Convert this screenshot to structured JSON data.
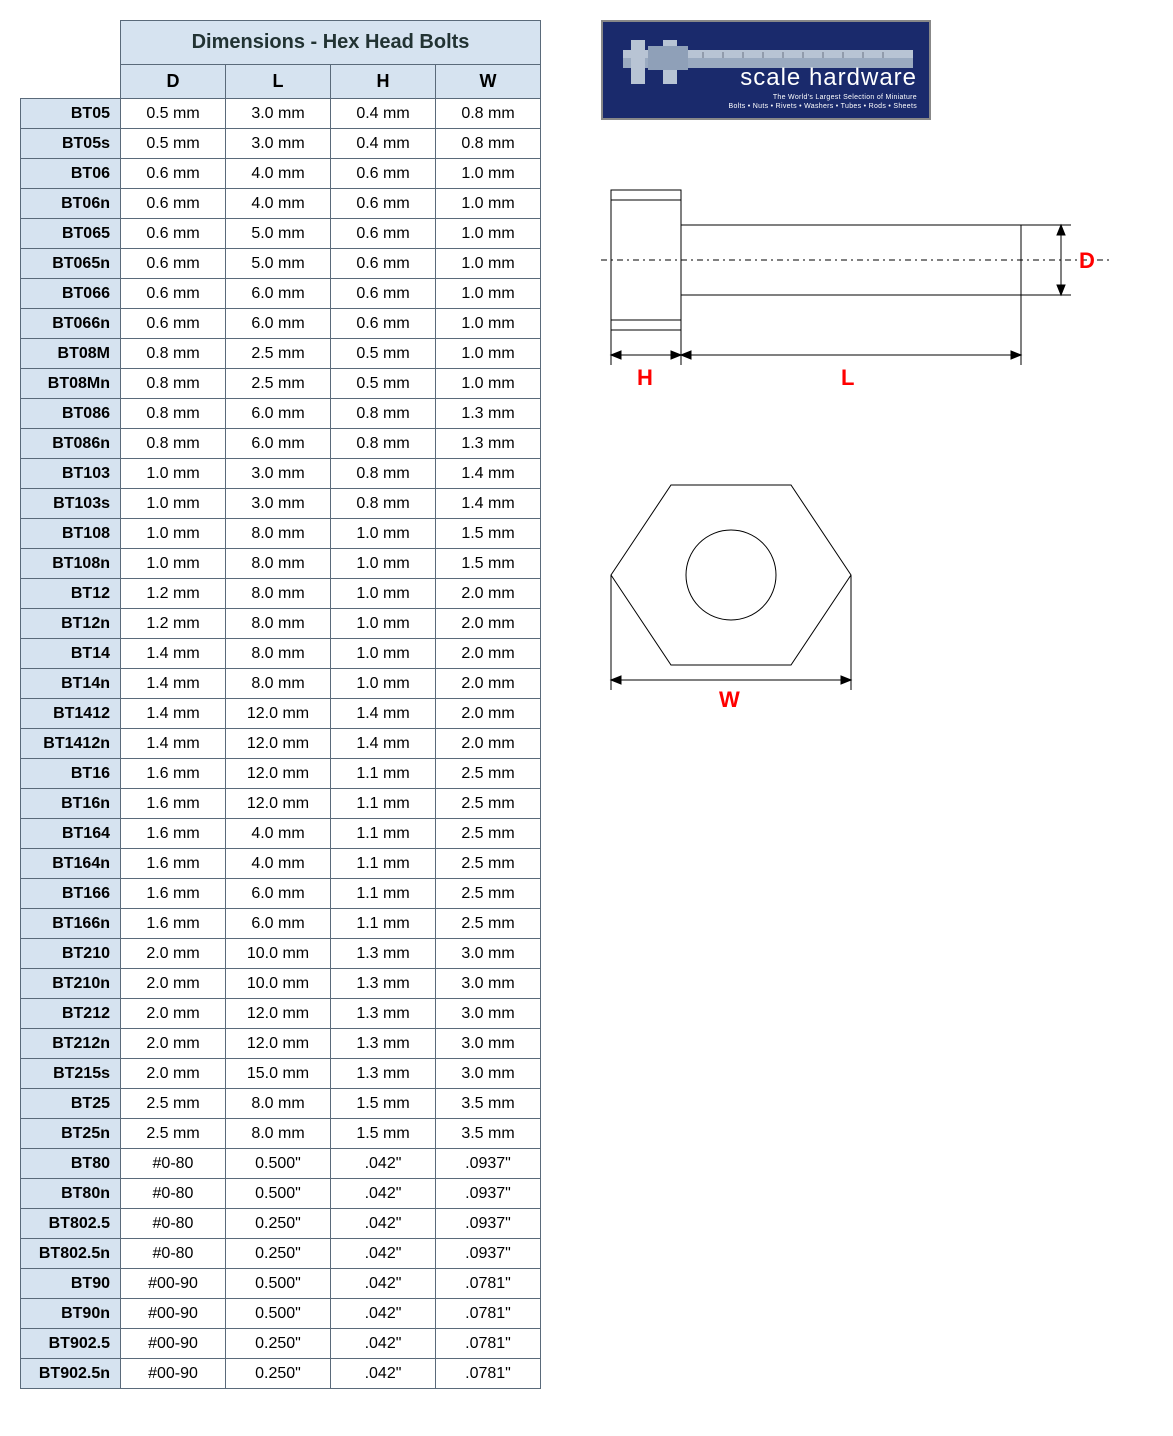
{
  "table": {
    "title": "Dimensions - Hex Head Bolts",
    "columns": [
      "D",
      "L",
      "H",
      "W"
    ],
    "rows": [
      {
        "id": "BT05",
        "d": "0.5 mm",
        "l": "3.0 mm",
        "h": "0.4 mm",
        "w": "0.8 mm"
      },
      {
        "id": "BT05s",
        "d": "0.5 mm",
        "l": "3.0 mm",
        "h": "0.4 mm",
        "w": "0.8 mm"
      },
      {
        "id": "BT06",
        "d": "0.6 mm",
        "l": "4.0 mm",
        "h": "0.6 mm",
        "w": "1.0 mm"
      },
      {
        "id": "BT06n",
        "d": "0.6 mm",
        "l": "4.0 mm",
        "h": "0.6 mm",
        "w": "1.0 mm"
      },
      {
        "id": "BT065",
        "d": "0.6 mm",
        "l": "5.0 mm",
        "h": "0.6 mm",
        "w": "1.0 mm"
      },
      {
        "id": "BT065n",
        "d": "0.6 mm",
        "l": "5.0 mm",
        "h": "0.6 mm",
        "w": "1.0 mm"
      },
      {
        "id": "BT066",
        "d": "0.6 mm",
        "l": "6.0 mm",
        "h": "0.6 mm",
        "w": "1.0 mm"
      },
      {
        "id": "BT066n",
        "d": "0.6 mm",
        "l": "6.0 mm",
        "h": "0.6 mm",
        "w": "1.0 mm"
      },
      {
        "id": "BT08M",
        "d": "0.8 mm",
        "l": "2.5 mm",
        "h": "0.5 mm",
        "w": "1.0 mm"
      },
      {
        "id": "BT08Mn",
        "d": "0.8 mm",
        "l": "2.5 mm",
        "h": "0.5 mm",
        "w": "1.0 mm"
      },
      {
        "id": "BT086",
        "d": "0.8 mm",
        "l": "6.0 mm",
        "h": "0.8 mm",
        "w": "1.3 mm"
      },
      {
        "id": "BT086n",
        "d": "0.8 mm",
        "l": "6.0 mm",
        "h": "0.8 mm",
        "w": "1.3 mm"
      },
      {
        "id": "BT103",
        "d": "1.0 mm",
        "l": "3.0 mm",
        "h": "0.8 mm",
        "w": "1.4 mm"
      },
      {
        "id": "BT103s",
        "d": "1.0 mm",
        "l": "3.0 mm",
        "h": "0.8 mm",
        "w": "1.4 mm"
      },
      {
        "id": "BT108",
        "d": "1.0 mm",
        "l": "8.0 mm",
        "h": "1.0 mm",
        "w": "1.5 mm"
      },
      {
        "id": "BT108n",
        "d": "1.0 mm",
        "l": "8.0 mm",
        "h": "1.0 mm",
        "w": "1.5 mm"
      },
      {
        "id": "BT12",
        "d": "1.2 mm",
        "l": "8.0 mm",
        "h": "1.0 mm",
        "w": "2.0 mm"
      },
      {
        "id": "BT12n",
        "d": "1.2 mm",
        "l": "8.0 mm",
        "h": "1.0 mm",
        "w": "2.0 mm"
      },
      {
        "id": "BT14",
        "d": "1.4 mm",
        "l": "8.0 mm",
        "h": "1.0 mm",
        "w": "2.0 mm"
      },
      {
        "id": "BT14n",
        "d": "1.4 mm",
        "l": "8.0 mm",
        "h": "1.0 mm",
        "w": "2.0 mm"
      },
      {
        "id": "BT1412",
        "d": "1.4 mm",
        "l": "12.0 mm",
        "h": "1.4 mm",
        "w": "2.0 mm"
      },
      {
        "id": "BT1412n",
        "d": "1.4 mm",
        "l": "12.0 mm",
        "h": "1.4 mm",
        "w": "2.0 mm"
      },
      {
        "id": "BT16",
        "d": "1.6 mm",
        "l": "12.0 mm",
        "h": "1.1 mm",
        "w": "2.5 mm"
      },
      {
        "id": "BT16n",
        "d": "1.6 mm",
        "l": "12.0 mm",
        "h": "1.1 mm",
        "w": "2.5 mm"
      },
      {
        "id": "BT164",
        "d": "1.6 mm",
        "l": "4.0 mm",
        "h": "1.1 mm",
        "w": "2.5 mm"
      },
      {
        "id": "BT164n",
        "d": "1.6 mm",
        "l": "4.0 mm",
        "h": "1.1 mm",
        "w": "2.5 mm"
      },
      {
        "id": "BT166",
        "d": "1.6 mm",
        "l": "6.0 mm",
        "h": "1.1 mm",
        "w": "2.5 mm"
      },
      {
        "id": "BT166n",
        "d": "1.6 mm",
        "l": "6.0 mm",
        "h": "1.1 mm",
        "w": "2.5 mm"
      },
      {
        "id": "BT210",
        "d": "2.0 mm",
        "l": "10.0 mm",
        "h": "1.3 mm",
        "w": "3.0 mm"
      },
      {
        "id": "BT210n",
        "d": "2.0 mm",
        "l": "10.0 mm",
        "h": "1.3 mm",
        "w": "3.0 mm"
      },
      {
        "id": "BT212",
        "d": "2.0 mm",
        "l": "12.0 mm",
        "h": "1.3 mm",
        "w": "3.0 mm"
      },
      {
        "id": "BT212n",
        "d": "2.0 mm",
        "l": "12.0 mm",
        "h": "1.3 mm",
        "w": "3.0 mm"
      },
      {
        "id": "BT215s",
        "d": "2.0 mm",
        "l": "15.0 mm",
        "h": "1.3 mm",
        "w": "3.0 mm"
      },
      {
        "id": "BT25",
        "d": "2.5 mm",
        "l": "8.0 mm",
        "h": "1.5 mm",
        "w": "3.5 mm"
      },
      {
        "id": "BT25n",
        "d": "2.5 mm",
        "l": "8.0 mm",
        "h": "1.5 mm",
        "w": "3.5 mm"
      },
      {
        "id": "BT80",
        "d": "#0-80",
        "l": "0.500\"",
        "h": ".042\"",
        "w": ".0937\""
      },
      {
        "id": "BT80n",
        "d": "#0-80",
        "l": "0.500\"",
        "h": ".042\"",
        "w": ".0937\""
      },
      {
        "id": "BT802.5",
        "d": "#0-80",
        "l": "0.250\"",
        "h": ".042\"",
        "w": ".0937\""
      },
      {
        "id": "BT802.5n",
        "d": "#0-80",
        "l": "0.250\"",
        "h": ".042\"",
        "w": ".0937\""
      },
      {
        "id": "BT90",
        "d": "#00-90",
        "l": "0.500\"",
        "h": ".042\"",
        "w": ".0781\""
      },
      {
        "id": "BT90n",
        "d": "#00-90",
        "l": "0.500\"",
        "h": ".042\"",
        "w": ".0781\""
      },
      {
        "id": "BT902.5",
        "d": "#00-90",
        "l": "0.250\"",
        "h": ".042\"",
        "w": ".0781\""
      },
      {
        "id": "BT902.5n",
        "d": "#00-90",
        "l": "0.250\"",
        "h": ".042\"",
        "w": ".0781\""
      }
    ]
  },
  "logo": {
    "brand": "scale hardware",
    "tagline1": "The World's Largest Selection of Miniature",
    "tagline2": "Bolts • Nuts • Rivets • Washers • Tubes • Rods • Sheets"
  },
  "diagram": {
    "labels": {
      "D": "D",
      "L": "L",
      "H": "H",
      "W": "W"
    },
    "label_color": "#ff0000",
    "line_color": "#000000",
    "line_width": 1
  },
  "colors": {
    "header_bg": "#d6e3f0",
    "border": "#5a6a7a",
    "logo_bg": "#1a2a6c"
  }
}
